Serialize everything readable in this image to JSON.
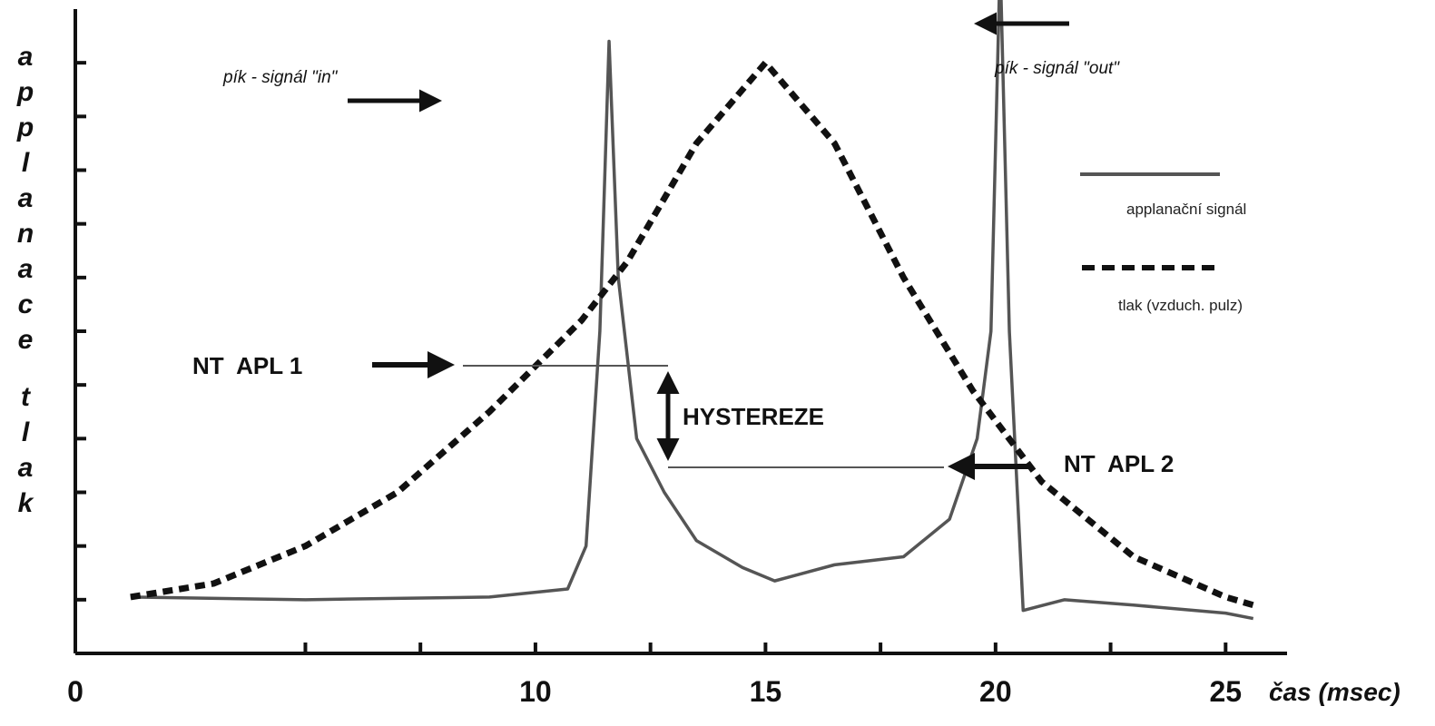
{
  "chart_data": {
    "type": "line",
    "title": "",
    "xlabel": "čas (msec)",
    "ylabel": "applanace tlak",
    "xlim": [
      0,
      26
    ],
    "ylim": [
      0,
      12
    ],
    "x_ticks": [
      "0",
      "10",
      "15",
      "20",
      "25"
    ],
    "grid": false,
    "legend_position": "right",
    "series": [
      {
        "name": "applanační signál",
        "style": "solid",
        "color": "#555555",
        "points": [
          [
            1.2,
            1.05
          ],
          [
            5,
            1.0
          ],
          [
            9,
            1.05
          ],
          [
            10.7,
            1.2
          ],
          [
            11.1,
            2.0
          ],
          [
            11.4,
            6.0
          ],
          [
            11.6,
            11.4
          ],
          [
            11.8,
            7.0
          ],
          [
            12.2,
            4.0
          ],
          [
            12.8,
            3.0
          ],
          [
            13.5,
            2.1
          ],
          [
            14.5,
            1.6
          ],
          [
            15.2,
            1.35
          ],
          [
            16.5,
            1.65
          ],
          [
            18,
            1.8
          ],
          [
            19,
            2.5
          ],
          [
            19.6,
            4.0
          ],
          [
            19.9,
            6.0
          ],
          [
            20.1,
            12.9
          ],
          [
            20.3,
            6.0
          ],
          [
            20.6,
            0.8
          ],
          [
            21.5,
            1.0
          ],
          [
            23,
            0.9
          ],
          [
            25,
            0.75
          ],
          [
            25.6,
            0.65
          ]
        ]
      },
      {
        "name": "tlak (vzduch. pulz)",
        "style": "dashed",
        "color": "#111111",
        "points": [
          [
            1.2,
            1.05
          ],
          [
            3,
            1.3
          ],
          [
            5,
            2.0
          ],
          [
            7,
            3.0
          ],
          [
            9,
            4.5
          ],
          [
            11,
            6.2
          ],
          [
            12,
            7.3
          ],
          [
            13.5,
            9.5
          ],
          [
            15,
            11.0
          ],
          [
            16.5,
            9.5
          ],
          [
            18,
            7.0
          ],
          [
            19.5,
            4.9
          ],
          [
            21,
            3.2
          ],
          [
            23,
            1.8
          ],
          [
            25,
            1.05
          ],
          [
            25.6,
            0.9
          ]
        ]
      }
    ],
    "annotations": [
      {
        "text": "pík - signál \"in\"",
        "x": 11.6,
        "y": 11.4
      },
      {
        "text": "pík - signál \"out\"",
        "x": 20.1,
        "y": 12.9
      },
      {
        "text": "NT  APL 1",
        "x": 11.6,
        "y": 5.8
      },
      {
        "text": "NT  APL 2",
        "x": 20.0,
        "y": 3.8
      },
      {
        "text": "HYSTEREZE",
        "x": 15.1,
        "y": 4.8
      }
    ]
  }
}
